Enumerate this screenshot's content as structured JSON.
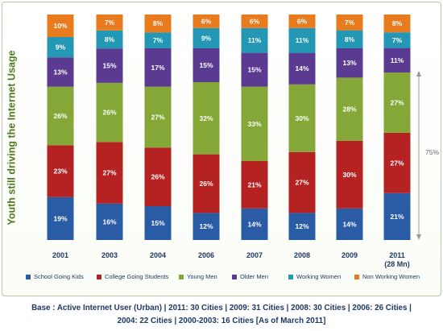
{
  "chart_data": {
    "type": "bar",
    "stacked": true,
    "ylabel": "Youth still driving the Internet Usage",
    "categories": [
      "2001",
      "2003",
      "2004",
      "2006",
      "2007",
      "2008",
      "2009",
      "2011"
    ],
    "category_sublabels": [
      "",
      "",
      "",
      "",
      "",
      "",
      "",
      "(28 Mn)"
    ],
    "series": [
      {
        "name": "School Going Kids",
        "color": "#2a5ba5",
        "values": [
          19,
          16,
          15,
          12,
          14,
          12,
          14,
          21
        ]
      },
      {
        "name": "College Going Students",
        "color": "#b42222",
        "values": [
          23,
          27,
          26,
          26,
          21,
          27,
          30,
          27
        ]
      },
      {
        "name": "Young Men",
        "color": "#84a737",
        "values": [
          26,
          26,
          27,
          32,
          33,
          30,
          28,
          27
        ]
      },
      {
        "name": "Older Men",
        "color": "#5b3a92",
        "values": [
          13,
          15,
          17,
          15,
          15,
          14,
          13,
          11
        ]
      },
      {
        "name": "Working Women",
        "color": "#2497b5",
        "values": [
          9,
          8,
          7,
          9,
          11,
          11,
          8,
          7
        ]
      },
      {
        "name": "Non Working Women",
        "color": "#e77b1e",
        "values": [
          10,
          7,
          8,
          6,
          6,
          6,
          7,
          8
        ]
      }
    ],
    "value_suffix": "%",
    "annotation": {
      "text": "75%"
    },
    "legend_position": "bottom"
  },
  "footer": {
    "line1": "Base : Active Internet User (Urban) | 2011: 30 Cities | 2009: 31 Cities | 2008: 30 Cities | 2006: 26 Cities |",
    "line2": "2004: 22 Cities | 2000-2003: 16 Cities [As of March 2011]"
  }
}
